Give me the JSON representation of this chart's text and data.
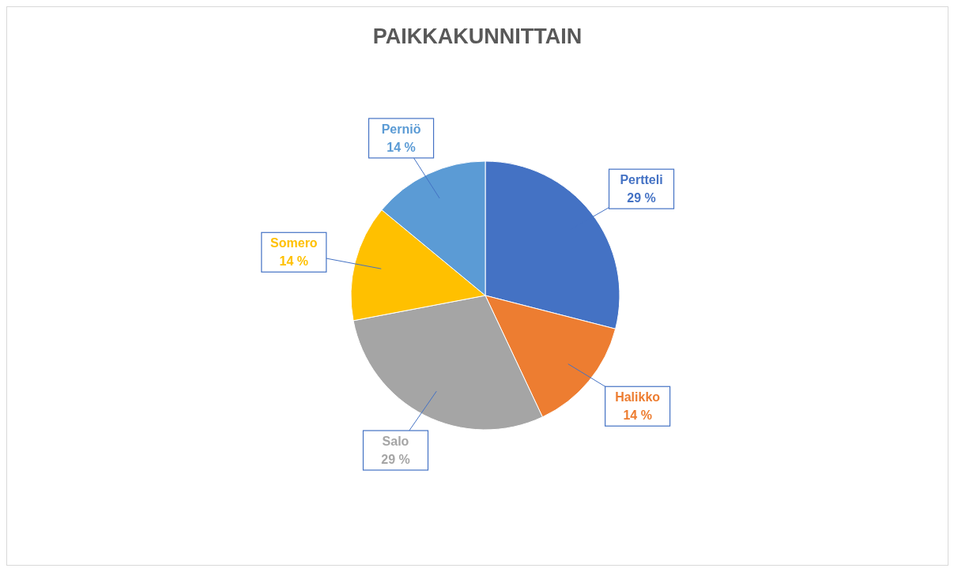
{
  "chart_data": {
    "type": "pie",
    "title": "PAIKKAKUNNITTAIN",
    "categories": [
      "Pertteli",
      "Halikko",
      "Salo",
      "Somero",
      "Perniö"
    ],
    "values": [
      29,
      14,
      29,
      14,
      14
    ],
    "value_labels": [
      "29 %",
      "14 %",
      "29 %",
      "14 %",
      "14 %"
    ],
    "colors": [
      "#4472c4",
      "#ed7d31",
      "#a5a5a5",
      "#ffc000",
      "#5b9bd5"
    ],
    "legend": false
  }
}
